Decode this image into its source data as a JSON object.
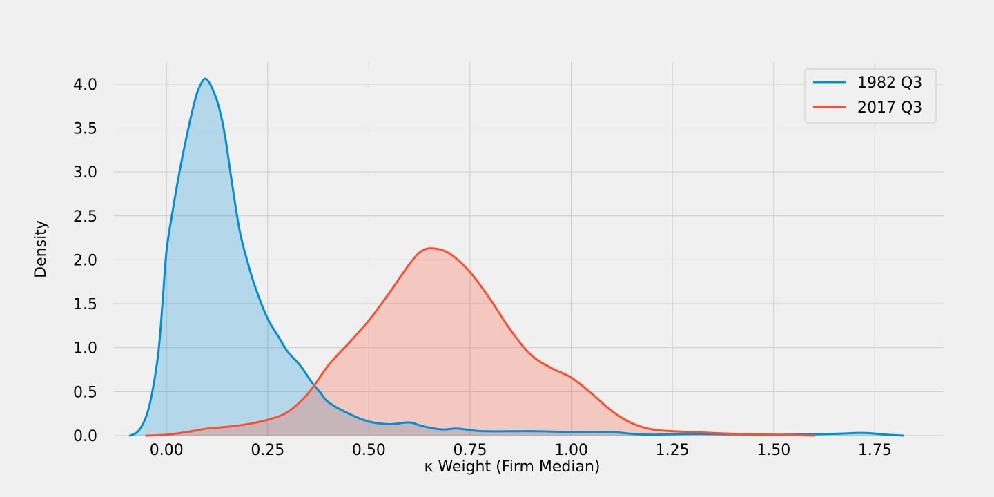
{
  "chart_data": {
    "type": "area",
    "title": "",
    "xlabel": "κ Weight (Firm Median)",
    "ylabel": "Density",
    "xlim": [
      -0.13,
      1.92
    ],
    "ylim": [
      0,
      4.25
    ],
    "x_ticks": [
      0.0,
      0.25,
      0.5,
      0.75,
      1.0,
      1.25,
      1.5,
      1.75
    ],
    "x_tick_labels": [
      "0.00",
      "0.25",
      "0.50",
      "0.75",
      "1.00",
      "1.25",
      "1.50",
      "1.75"
    ],
    "y_ticks": [
      0.0,
      0.5,
      1.0,
      1.5,
      2.0,
      2.5,
      3.0,
      3.5,
      4.0
    ],
    "y_tick_labels": [
      "0.0",
      "0.5",
      "1.0",
      "1.5",
      "2.0",
      "2.5",
      "3.0",
      "3.5",
      "4.0"
    ],
    "grid": true,
    "legend_position": "top-right",
    "series": [
      {
        "name": "1982 Q3",
        "color": "#008fd5",
        "fill": "#008fd5",
        "x": [
          -0.09,
          -0.07,
          -0.05,
          -0.035,
          -0.02,
          -0.01,
          0.0,
          0.015,
          0.03,
          0.045,
          0.06,
          0.075,
          0.09,
          0.1,
          0.115,
          0.13,
          0.145,
          0.16,
          0.18,
          0.2,
          0.22,
          0.25,
          0.28,
          0.3,
          0.33,
          0.36,
          0.38,
          0.4,
          0.45,
          0.5,
          0.55,
          0.6,
          0.63,
          0.68,
          0.72,
          0.78,
          0.9,
          1.0,
          1.05,
          1.1,
          1.15,
          1.2,
          1.3,
          1.5,
          1.65,
          1.72,
          1.78,
          1.82
        ],
        "y": [
          0.0,
          0.05,
          0.22,
          0.5,
          0.95,
          1.5,
          2.1,
          2.55,
          2.95,
          3.3,
          3.62,
          3.89,
          4.04,
          4.05,
          3.93,
          3.73,
          3.4,
          2.93,
          2.35,
          1.98,
          1.68,
          1.33,
          1.1,
          0.95,
          0.8,
          0.6,
          0.49,
          0.38,
          0.25,
          0.16,
          0.13,
          0.15,
          0.11,
          0.07,
          0.08,
          0.05,
          0.05,
          0.04,
          0.04,
          0.04,
          0.02,
          0.01,
          0.02,
          0.01,
          0.02,
          0.03,
          0.01,
          0.0
        ]
      },
      {
        "name": "2017 Q3",
        "color": "#fc4f30",
        "fill": "#fc4f30",
        "x": [
          -0.05,
          0.0,
          0.05,
          0.1,
          0.15,
          0.2,
          0.25,
          0.3,
          0.35,
          0.4,
          0.45,
          0.5,
          0.55,
          0.6,
          0.63,
          0.66,
          0.7,
          0.75,
          0.8,
          0.85,
          0.9,
          0.95,
          1.0,
          1.05,
          1.1,
          1.15,
          1.2,
          1.25,
          1.3,
          1.4,
          1.5,
          1.6
        ],
        "y": [
          0.0,
          0.01,
          0.04,
          0.08,
          0.1,
          0.13,
          0.18,
          0.27,
          0.48,
          0.8,
          1.05,
          1.31,
          1.62,
          1.95,
          2.1,
          2.13,
          2.07,
          1.86,
          1.55,
          1.2,
          0.92,
          0.77,
          0.66,
          0.48,
          0.28,
          0.14,
          0.07,
          0.05,
          0.04,
          0.02,
          0.01,
          0.0
        ]
      }
    ]
  }
}
